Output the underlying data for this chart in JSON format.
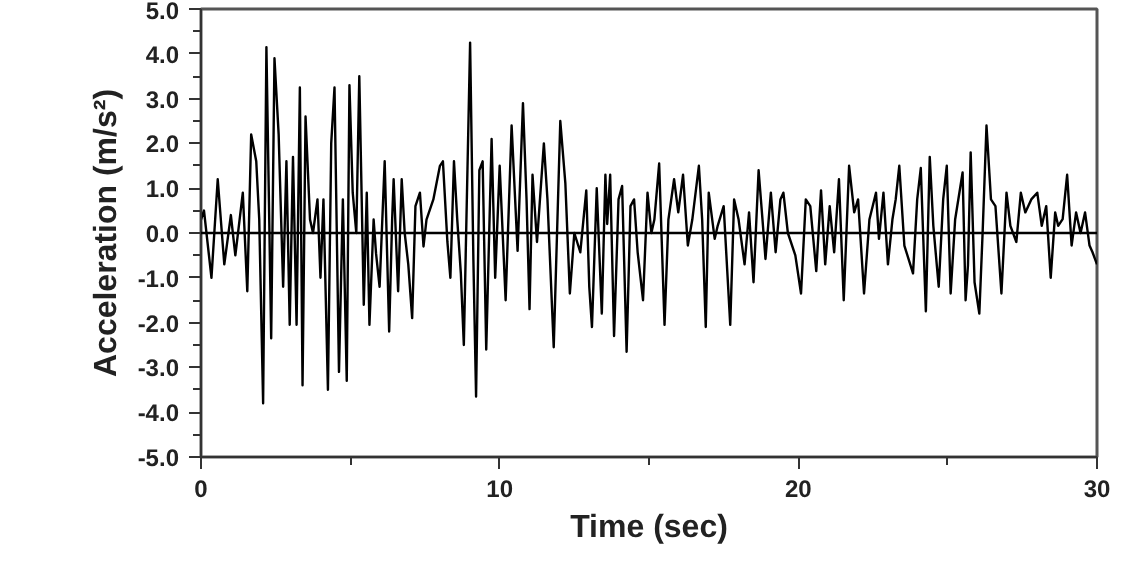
{
  "chart_data": {
    "type": "line",
    "xlabel": "Time (sec)",
    "ylabel": "Acceleration (m/s²)",
    "xlim": [
      0,
      30
    ],
    "ylim": [
      -5,
      5
    ],
    "xticks": [
      0,
      {
        "value": 5,
        "label": null
      },
      10,
      {
        "value": 15,
        "label": null
      },
      20,
      {
        "value": 25,
        "label": null
      },
      30
    ],
    "yticks": [
      {
        "value": -5,
        "label": "-5.0"
      },
      {
        "value": -4.5,
        "label": null
      },
      {
        "value": -4,
        "label": "-4.0"
      },
      {
        "value": -3.5,
        "label": null
      },
      {
        "value": -3,
        "label": "-3.0"
      },
      {
        "value": -2.5,
        "label": null
      },
      {
        "value": -2,
        "label": "-2.0"
      },
      {
        "value": -1.5,
        "label": null
      },
      {
        "value": -1,
        "label": "-1.0"
      },
      {
        "value": -0.5,
        "label": null
      },
      {
        "value": 0,
        "label": "0.0"
      },
      {
        "value": 0.5,
        "label": null
      },
      {
        "value": 1,
        "label": "1.0"
      },
      {
        "value": 1.5,
        "label": null
      },
      {
        "value": 2,
        "label": "2.0"
      },
      {
        "value": 2.5,
        "label": null
      },
      {
        "value": 3,
        "label": "3.0"
      },
      {
        "value": 3.5,
        "label": null
      },
      {
        "value": 4,
        "label": "4.0"
      },
      {
        "value": 4.5,
        "label": null
      },
      {
        "value": 5,
        "label": "5.0"
      }
    ],
    "grid": false,
    "line_style": "solid",
    "ref_lines": [
      {
        "axis": "y",
        "value": 0,
        "color": "#000000"
      }
    ],
    "series": [
      {
        "color": "#000000",
        "x": [
          0.0,
          0.1,
          0.35,
          0.56,
          0.78,
          1.0,
          1.15,
          1.4,
          1.55,
          1.68,
          1.85,
          1.95,
          2.08,
          2.19,
          2.35,
          2.46,
          2.6,
          2.75,
          2.86,
          2.97,
          3.08,
          3.2,
          3.31,
          3.4,
          3.5,
          3.65,
          3.75,
          3.9,
          4.0,
          4.1,
          4.25,
          4.36,
          4.47,
          4.62,
          4.75,
          4.88,
          4.97,
          5.08,
          5.2,
          5.3,
          5.45,
          5.55,
          5.64,
          5.78,
          5.86,
          5.98,
          6.15,
          6.3,
          6.4,
          6.45,
          6.6,
          6.72,
          6.82,
          6.94,
          7.07,
          7.18,
          7.33,
          7.45,
          7.55,
          7.78,
          8.0,
          8.1,
          8.25,
          8.35,
          8.47,
          8.58,
          8.7,
          8.8,
          9.01,
          9.12,
          9.21,
          9.32,
          9.43,
          9.55,
          9.73,
          9.85,
          10.0,
          10.2,
          10.4,
          10.6,
          10.78,
          10.9,
          11.0,
          11.1,
          11.25,
          11.48,
          11.6,
          11.81,
          12.03,
          12.2,
          12.35,
          12.5,
          12.7,
          12.9,
          13.0,
          13.09,
          13.25,
          13.42,
          13.54,
          13.6,
          13.7,
          13.83,
          13.98,
          14.1,
          14.25,
          14.38,
          14.5,
          14.62,
          14.8,
          14.95,
          15.08,
          15.18,
          15.34,
          15.52,
          15.65,
          15.84,
          15.98,
          16.14,
          16.3,
          16.45,
          16.67,
          16.78,
          16.9,
          17.0,
          17.2,
          17.3,
          17.5,
          17.72,
          17.85,
          18.0,
          18.2,
          18.35,
          18.5,
          18.67,
          18.8,
          18.9,
          19.08,
          19.24,
          19.4,
          19.5,
          19.65,
          19.9,
          20.09,
          20.25,
          20.4,
          20.6,
          20.76,
          20.9,
          21.05,
          21.2,
          21.36,
          21.52,
          21.7,
          21.87,
          22.0,
          22.2,
          22.38,
          22.6,
          22.7,
          22.85,
          23.0,
          23.15,
          23.26,
          23.38,
          23.55,
          23.84,
          23.98,
          24.1,
          24.27,
          24.4,
          24.52,
          24.7,
          24.85,
          24.97,
          25.1,
          25.25,
          25.5,
          25.6,
          25.68,
          25.77,
          25.9,
          26.06,
          26.17,
          26.3,
          26.45,
          26.6,
          26.8,
          26.97,
          27.1,
          27.3,
          27.45,
          27.6,
          27.8,
          28.0,
          28.15,
          28.3,
          28.45,
          28.6,
          28.7,
          28.85,
          29.0,
          29.15,
          29.3,
          29.45,
          29.6,
          29.75,
          29.85,
          30.0
        ],
        "values": [
          0.3,
          0.5,
          -1.0,
          1.2,
          -0.7,
          0.4,
          -0.5,
          0.9,
          -1.3,
          2.2,
          1.6,
          0.3,
          -3.8,
          4.15,
          -2.35,
          3.9,
          2.2,
          -1.2,
          1.6,
          -2.05,
          1.7,
          -2.05,
          3.25,
          -3.4,
          2.6,
          0.3,
          0.0,
          0.75,
          -1.0,
          0.75,
          -3.5,
          2.0,
          3.25,
          -3.1,
          0.75,
          -3.3,
          3.3,
          0.9,
          0.0,
          3.5,
          -1.6,
          0.9,
          -2.05,
          0.3,
          -0.45,
          -1.2,
          1.6,
          -2.2,
          0.3,
          1.2,
          -1.3,
          1.2,
          0.0,
          -0.7,
          -1.9,
          0.6,
          0.9,
          -0.3,
          0.3,
          0.75,
          1.5,
          1.6,
          -0.2,
          -1.0,
          1.6,
          0.3,
          -0.9,
          -2.5,
          4.25,
          -0.6,
          -3.65,
          1.4,
          1.6,
          -2.6,
          2.1,
          -1.0,
          1.5,
          -1.5,
          2.4,
          -0.4,
          2.9,
          0.75,
          -1.7,
          1.3,
          -0.2,
          2.0,
          0.75,
          -2.55,
          2.5,
          1.1,
          -1.35,
          0.0,
          -0.43,
          0.95,
          -1.2,
          -2.1,
          1.0,
          -1.8,
          1.3,
          0.2,
          1.3,
          -2.3,
          0.75,
          1.05,
          -2.65,
          0.6,
          0.75,
          -0.43,
          -1.5,
          0.9,
          0.0,
          0.3,
          1.55,
          -2.05,
          0.3,
          1.2,
          0.46,
          1.3,
          -0.28,
          0.3,
          1.5,
          0.3,
          -2.1,
          0.9,
          -0.13,
          0.16,
          0.6,
          -2.05,
          0.75,
          0.3,
          -0.7,
          0.46,
          -1.1,
          1.4,
          0.3,
          -0.58,
          0.9,
          -0.43,
          0.75,
          0.9,
          0.0,
          -0.5,
          -1.35,
          0.75,
          0.6,
          -0.85,
          0.95,
          -0.7,
          0.6,
          -0.43,
          1.2,
          -1.5,
          1.5,
          0.46,
          0.75,
          -1.35,
          0.3,
          0.9,
          -0.13,
          0.9,
          -0.7,
          0.3,
          0.75,
          1.5,
          -0.28,
          -0.9,
          0.75,
          1.45,
          -1.75,
          1.7,
          0.16,
          -1.2,
          0.75,
          1.5,
          -1.35,
          0.3,
          1.35,
          -1.5,
          -0.72,
          1.8,
          -1.1,
          -1.8,
          0.0,
          2.4,
          0.75,
          0.6,
          -1.35,
          0.9,
          0.16,
          -0.2,
          0.9,
          0.46,
          0.75,
          0.9,
          0.16,
          0.6,
          -1.0,
          0.46,
          0.16,
          0.31,
          1.3,
          -0.28,
          0.46,
          0.0,
          0.46,
          -0.28,
          -0.43,
          -0.7
        ]
      }
    ]
  }
}
